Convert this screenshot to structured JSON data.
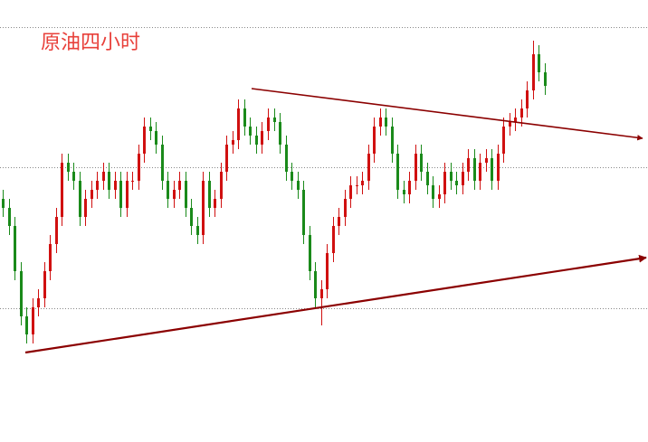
{
  "chart_data": {
    "type": "ohlc",
    "title": "原油四小时",
    "title_color": "#e8403a",
    "up_color": "#d01010",
    "down_color": "#1a8a1a",
    "ylim": [
      0,
      489
    ],
    "open": [
      269,
      259,
      239,
      189,
      139,
      119,
      149,
      159,
      189,
      219,
      249,
      309,
      299,
      289,
      249,
      269,
      279,
      289,
      299,
      279,
      289,
      259,
      289,
      289,
      319,
      349,
      344,
      329,
      289,
      269,
      279,
      289,
      259,
      239,
      229,
      289,
      259,
      269,
      299,
      329,
      334,
      369,
      349,
      339,
      329,
      344,
      359,
      354,
      329,
      299,
      289,
      279,
      229,
      189,
      159,
      169,
      209,
      239,
      249,
      269,
      284,
      284,
      289,
      319,
      349,
      359,
      349,
      319,
      279,
      274,
      289,
      319,
      299,
      284,
      269,
      274,
      299,
      289,
      284,
      299,
      314,
      289,
      309,
      314,
      289,
      319,
      349,
      354,
      359,
      369,
      389,
      429,
      409
    ],
    "high": [
      279,
      269,
      249,
      199,
      149,
      159,
      169,
      199,
      229,
      259,
      319,
      319,
      309,
      299,
      279,
      289,
      299,
      309,
      309,
      299,
      299,
      299,
      299,
      329,
      359,
      359,
      354,
      339,
      299,
      289,
      299,
      299,
      269,
      249,
      299,
      299,
      279,
      309,
      339,
      344,
      379,
      379,
      359,
      349,
      354,
      369,
      369,
      364,
      339,
      309,
      299,
      289,
      239,
      199,
      179,
      219,
      249,
      259,
      279,
      294,
      294,
      299,
      329,
      359,
      369,
      369,
      359,
      329,
      289,
      299,
      329,
      329,
      309,
      294,
      284,
      309,
      309,
      299,
      309,
      324,
      324,
      319,
      324,
      324,
      329,
      359,
      364,
      369,
      379,
      399,
      444,
      439,
      419
    ],
    "low": [
      249,
      229,
      179,
      129,
      109,
      109,
      139,
      149,
      179,
      209,
      239,
      289,
      279,
      239,
      239,
      259,
      269,
      279,
      269,
      269,
      249,
      249,
      279,
      279,
      309,
      334,
      319,
      279,
      259,
      259,
      269,
      249,
      229,
      219,
      219,
      249,
      249,
      259,
      289,
      319,
      324,
      339,
      329,
      319,
      319,
      334,
      344,
      319,
      289,
      279,
      269,
      219,
      179,
      149,
      129,
      159,
      199,
      229,
      239,
      259,
      274,
      274,
      279,
      309,
      339,
      339,
      309,
      269,
      264,
      264,
      279,
      289,
      274,
      259,
      259,
      264,
      279,
      274,
      274,
      289,
      279,
      279,
      299,
      279,
      279,
      309,
      339,
      344,
      349,
      359,
      379,
      399,
      384
    ],
    "close": [
      259,
      239,
      189,
      139,
      119,
      149,
      159,
      189,
      219,
      249,
      309,
      299,
      289,
      249,
      269,
      279,
      289,
      299,
      279,
      289,
      259,
      289,
      289,
      319,
      349,
      344,
      329,
      289,
      269,
      279,
      289,
      259,
      239,
      229,
      289,
      259,
      269,
      299,
      329,
      334,
      369,
      349,
      339,
      329,
      344,
      359,
      354,
      329,
      299,
      289,
      279,
      229,
      189,
      159,
      169,
      209,
      239,
      249,
      269,
      284,
      284,
      289,
      319,
      349,
      359,
      349,
      319,
      279,
      274,
      289,
      319,
      299,
      284,
      269,
      274,
      299,
      289,
      284,
      299,
      314,
      289,
      309,
      314,
      289,
      319,
      349,
      354,
      359,
      369,
      389,
      429,
      409,
      394
    ]
  }
}
